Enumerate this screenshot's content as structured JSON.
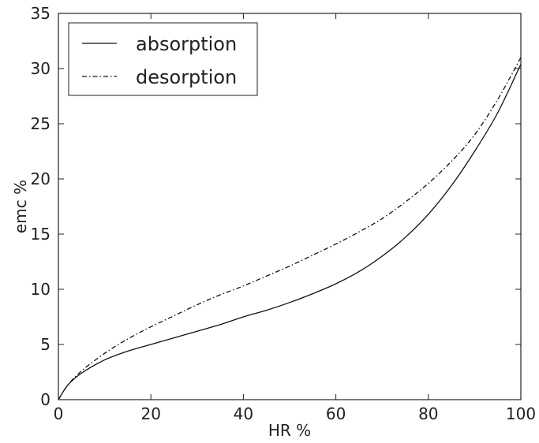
{
  "chart_data": {
    "type": "line",
    "title": "",
    "xlabel": "HR %",
    "ylabel": "emc %",
    "xlim": [
      0,
      100
    ],
    "ylim": [
      0,
      35
    ],
    "xticks": [
      "0",
      "20",
      "40",
      "60",
      "80",
      "100"
    ],
    "yticks": [
      "0",
      "5",
      "10",
      "15",
      "20",
      "25",
      "30",
      "35"
    ],
    "grid": false,
    "legend_position": "top-left",
    "series": [
      {
        "name": "absorption",
        "line_style": "solid",
        "color": "#111111",
        "x": [
          0,
          2,
          5,
          10,
          15,
          20,
          25,
          30,
          35,
          40,
          45,
          50,
          55,
          60,
          65,
          70,
          75,
          80,
          85,
          90,
          95,
          100
        ],
        "y": [
          0,
          1.3,
          2.4,
          3.6,
          4.4,
          5.0,
          5.6,
          6.2,
          6.8,
          7.5,
          8.1,
          8.8,
          9.6,
          10.5,
          11.6,
          13.0,
          14.7,
          16.8,
          19.4,
          22.5,
          26.0,
          30.4
        ]
      },
      {
        "name": "desorption",
        "line_style": "dashdot",
        "color": "#111111",
        "x": [
          0,
          2,
          5,
          10,
          15,
          20,
          25,
          30,
          35,
          40,
          45,
          50,
          55,
          60,
          65,
          70,
          75,
          80,
          85,
          90,
          95,
          100
        ],
        "y": [
          0,
          1.3,
          2.6,
          4.2,
          5.5,
          6.6,
          7.6,
          8.6,
          9.5,
          10.3,
          11.2,
          12.1,
          13.1,
          14.1,
          15.2,
          16.4,
          17.9,
          19.6,
          21.6,
          24.0,
          27.2,
          31.0
        ]
      }
    ]
  }
}
